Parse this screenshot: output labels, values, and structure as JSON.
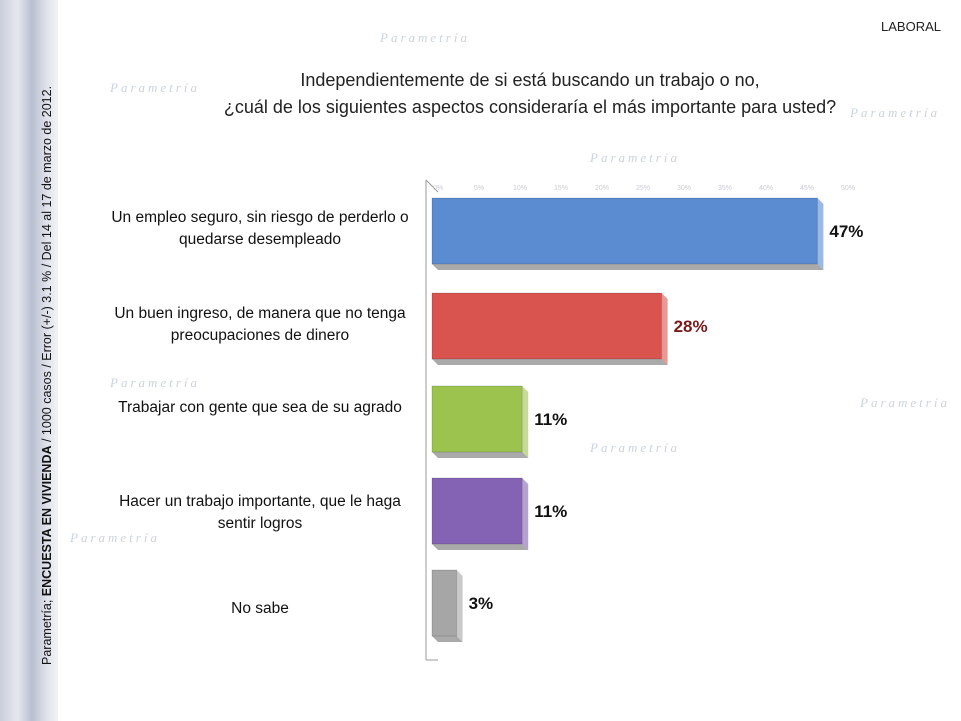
{
  "header": {
    "section": "LABORAL"
  },
  "sidebar": {
    "source_prefix": "Parametría; ",
    "source_bold": "ENCUESTA EN VIVIENDA",
    "source_rest": " / 1000 casos / Error (+/-) 3.1 % / Del 14 al 17 de marzo de 2012."
  },
  "watermark": "Parametría",
  "chart_data": {
    "type": "bar",
    "orientation": "horizontal",
    "title_lines": [
      "Independientemente de si está buscando un trabajo o no,",
      "¿cuál de los siguientes aspectos consideraría el más importante para usted?"
    ],
    "categories": [
      "Un empleo seguro, sin riesgo de perderlo o quedarse desempleado",
      "Un buen ingreso, de manera que no tenga preocupaciones de dinero",
      "Trabajar con gente que sea de su agrado",
      "Hacer un trabajo importante, que le haga sentir logros",
      "No sabe"
    ],
    "values": [
      47,
      28,
      11,
      11,
      3
    ],
    "data_labels": [
      "47%",
      "28%",
      "11%",
      "11%",
      "3%"
    ],
    "colors": [
      "#5b8bd0",
      "#d9534f",
      "#9bc34e",
      "#8563b4",
      "#a6a6a6"
    ],
    "label_colors": [
      "#111111",
      "#7a1a1a",
      "#111111",
      "#111111",
      "#111111"
    ],
    "xlim": [
      0,
      50
    ],
    "ticks": [
      "0%",
      "5%",
      "10%",
      "15%",
      "20%",
      "25%",
      "30%",
      "35%",
      "40%",
      "45%",
      "50%"
    ]
  }
}
